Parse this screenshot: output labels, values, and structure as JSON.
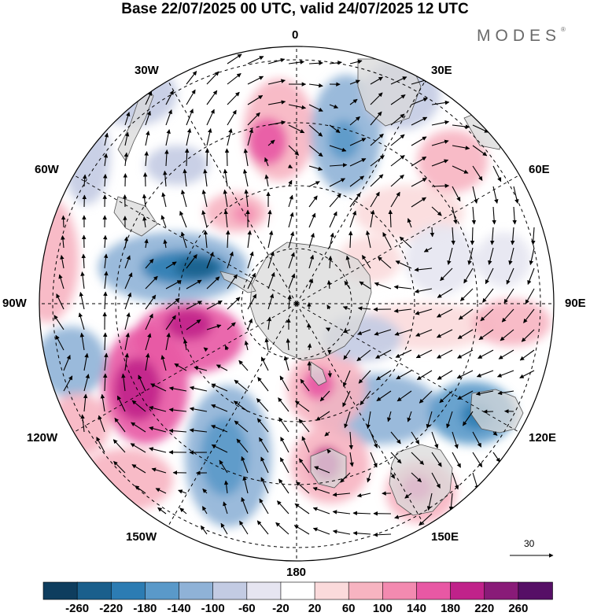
{
  "title": "Base 22/07/2025 00 UTC, valid 24/07/2025 12 UTC",
  "logo": {
    "text": "MODES",
    "mark": "®"
  },
  "lon_labels": {
    "n0": "0",
    "n30e": "30E",
    "n60e": "60E",
    "n90e": "90E",
    "n120e": "120E",
    "n150e": "150E",
    "n180": "180",
    "n150w": "150W",
    "n120w": "120W",
    "n90w": "90W",
    "n60w": "60W",
    "n30w": "30W"
  },
  "reference_vector": {
    "label": "30",
    "icon": "arrow-right-icon"
  },
  "colorbar": {
    "colors": [
      "#0e3d5e",
      "#1a5f8c",
      "#2c7cb3",
      "#5a99c9",
      "#8fb2d7",
      "#c3cbe3",
      "#e6e5f1",
      "#ffffff",
      "#fbdadb",
      "#f7b4c1",
      "#f38ab0",
      "#e858a4",
      "#c0228a",
      "#891b78",
      "#560f66"
    ],
    "ticks": [
      "-260",
      "-220",
      "-180",
      "-140",
      "-100",
      "-60",
      "-20",
      "20",
      "60",
      "100",
      "140",
      "180",
      "220",
      "260"
    ]
  },
  "map": {
    "projection": "south-polar-stereographic",
    "field": "geopotential height anomaly",
    "arrow_icon": "wind-vector-arrow-icon",
    "colors": {
      "land_fill": "#d9d9d9",
      "coast": "#555555",
      "grid": "#000000"
    }
  }
}
